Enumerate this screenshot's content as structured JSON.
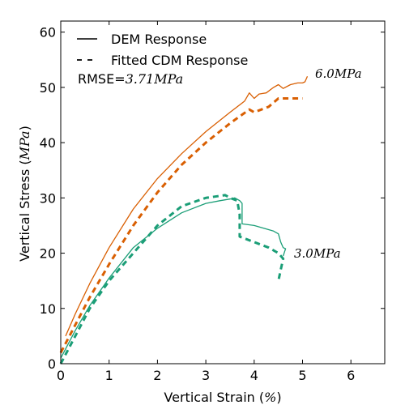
{
  "chart_data": {
    "type": "line",
    "xlabel": "Vertical Strain (%)",
    "ylabel": "Vertical Stress (MPa)",
    "xlim": [
      0,
      6.7
    ],
    "ylim": [
      0,
      62
    ],
    "xticks": [
      0,
      1,
      2,
      3,
      4,
      5,
      6
    ],
    "yticks": [
      0,
      10,
      20,
      30,
      40,
      50,
      60
    ],
    "xtick_labels": [
      "0",
      "1",
      "2",
      "3",
      "4",
      "5",
      "6"
    ],
    "ytick_labels": [
      "0",
      "10",
      "20",
      "30",
      "40",
      "50",
      "60"
    ],
    "grid": false,
    "legend": {
      "placement": "top-left",
      "entries": [
        {
          "label": "DEM Response",
          "style": "solid"
        },
        {
          "label": "Fitted CDM Response",
          "style": "dashed"
        }
      ]
    },
    "annotations": {
      "rmse": "RMSE=3.71MPa",
      "high_label": "6.0MPa",
      "low_label": "3.0MPa"
    },
    "colors": {
      "high": "#d95f02",
      "low": "#1b9e77"
    },
    "series": [
      {
        "group": "high",
        "style": "solid",
        "points": [
          [
            0.1,
            5
          ],
          [
            0.3,
            9
          ],
          [
            0.6,
            14.5
          ],
          [
            1.0,
            21
          ],
          [
            1.5,
            28
          ],
          [
            2.0,
            33.5
          ],
          [
            2.5,
            38
          ],
          [
            3.0,
            42
          ],
          [
            3.5,
            45.5
          ],
          [
            3.8,
            47.5
          ],
          [
            3.9,
            49
          ],
          [
            4.0,
            48
          ],
          [
            4.1,
            48.8
          ],
          [
            4.25,
            49
          ],
          [
            4.4,
            50
          ],
          [
            4.5,
            50.5
          ],
          [
            4.6,
            49.8
          ],
          [
            4.75,
            50.5
          ],
          [
            4.9,
            50.8
          ],
          [
            5.0,
            50.8
          ],
          [
            5.05,
            51
          ],
          [
            5.1,
            52
          ]
        ]
      },
      {
        "group": "high",
        "style": "dashed",
        "points": [
          [
            0,
            2
          ],
          [
            0.3,
            7
          ],
          [
            0.6,
            12
          ],
          [
            1.0,
            18
          ],
          [
            1.5,
            25
          ],
          [
            2.0,
            31
          ],
          [
            2.5,
            36
          ],
          [
            3.0,
            40
          ],
          [
            3.5,
            43.5
          ],
          [
            3.9,
            46
          ],
          [
            4.0,
            45.5
          ],
          [
            4.3,
            46.5
          ],
          [
            4.5,
            48
          ],
          [
            4.7,
            48
          ],
          [
            5.0,
            48
          ]
        ]
      },
      {
        "group": "low",
        "style": "solid",
        "points": [
          [
            0,
            1
          ],
          [
            0.3,
            6
          ],
          [
            0.6,
            10.5
          ],
          [
            1.0,
            15.5
          ],
          [
            1.5,
            21
          ],
          [
            2.0,
            24.5
          ],
          [
            2.5,
            27.3
          ],
          [
            3.0,
            29
          ],
          [
            3.3,
            29.5
          ],
          [
            3.5,
            29.8
          ],
          [
            3.6,
            30
          ],
          [
            3.7,
            29.5
          ],
          [
            3.75,
            29
          ],
          [
            3.75,
            25.3
          ],
          [
            4.0,
            25
          ],
          [
            4.4,
            24
          ],
          [
            4.5,
            23.5
          ],
          [
            4.55,
            22
          ],
          [
            4.6,
            21
          ],
          [
            4.65,
            20.8
          ],
          [
            4.6,
            19.5
          ]
        ]
      },
      {
        "group": "low",
        "style": "dashed",
        "points": [
          [
            0,
            0
          ],
          [
            0.3,
            5
          ],
          [
            0.6,
            10
          ],
          [
            1.0,
            15
          ],
          [
            1.5,
            20
          ],
          [
            2.0,
            25
          ],
          [
            2.5,
            28.5
          ],
          [
            3.0,
            30
          ],
          [
            3.4,
            30.5
          ],
          [
            3.5,
            30
          ],
          [
            3.65,
            29.5
          ],
          [
            3.7,
            27
          ],
          [
            3.7,
            23
          ],
          [
            4.0,
            22
          ],
          [
            4.3,
            21
          ],
          [
            4.5,
            20
          ],
          [
            4.6,
            19
          ],
          [
            4.55,
            17
          ],
          [
            4.5,
            15
          ]
        ]
      }
    ]
  }
}
